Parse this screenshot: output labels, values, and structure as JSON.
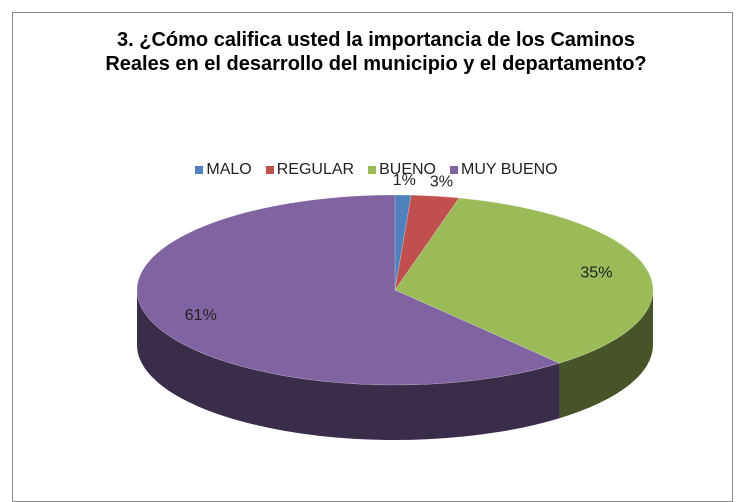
{
  "chart_data": {
    "type": "pie",
    "title": "3. ¿Cómo califica usted la importancia de los Caminos Reales en el desarrollo del municipio y el departamento?",
    "categories": [
      "MALO",
      "REGULAR",
      "BUENO",
      "MUY BUENO"
    ],
    "values": [
      1,
      3,
      35,
      61
    ],
    "value_labels": [
      "1%",
      "3%",
      "35%",
      "61%"
    ],
    "colors": [
      "#4f81bd",
      "#c0504d",
      "#9bbb59",
      "#8064a2"
    ],
    "legend": "top"
  }
}
